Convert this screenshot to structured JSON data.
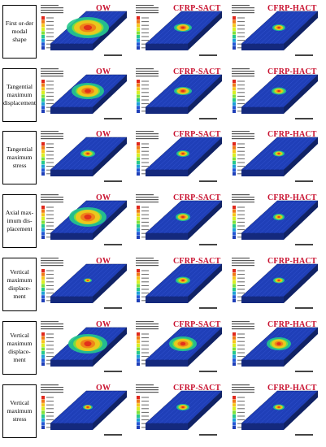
{
  "rows": [
    {
      "label": "First or-der modal shape",
      "tags": [
        "OW",
        "CFRP-SACT",
        "CFRP-HACT"
      ]
    },
    {
      "label": "Tangential maximum displacement",
      "tags": [
        "OW",
        "CFRP-SACT",
        "CFRP-HACT"
      ]
    },
    {
      "label": "Tangential maximum stress",
      "tags": [
        "OW",
        "CFRP-SACT",
        "CFRP-HACT"
      ]
    },
    {
      "label": "Axial max-imum dis-placement",
      "tags": [
        "OW",
        "CFRP-SACT",
        "CFRP-HACT"
      ]
    },
    {
      "label": "Vertical maximum displace-ment",
      "tags": [
        "OW",
        "CFRP-SACT",
        "CFRP-HACT"
      ]
    },
    {
      "label": "Vertical maximum displace-ment",
      "tags": [
        "OW",
        "CFRP-SACT",
        "CFRP-HACT"
      ]
    },
    {
      "label": "Vertical maximum stress",
      "tags": [
        "OW",
        "CFRP-SACT",
        "CFRP-HACT"
      ]
    }
  ],
  "colors": {
    "slab_blue": "#1f3fb8",
    "slab_side": "#14297d",
    "hot_red": "#e0281c",
    "tag_red": "#c8102e"
  },
  "legend_colors": [
    "#e0281c",
    "#f07b18",
    "#f7c51b",
    "#d9ef24",
    "#7ee23a",
    "#25c98c",
    "#1ea0d8",
    "#2258d6",
    "#1f3fb8"
  ]
}
